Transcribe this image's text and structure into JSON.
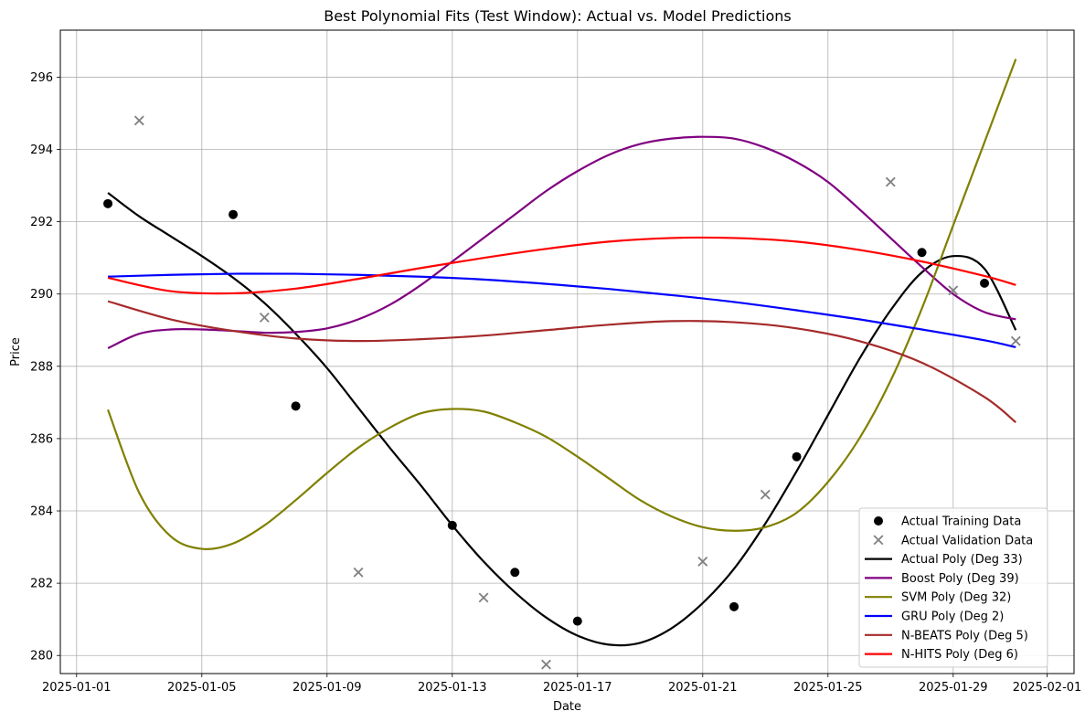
{
  "chart_data": {
    "type": "scatter",
    "title": "Best Polynomial Fits (Test Window): Actual vs. Model Predictions",
    "xlabel": "Date",
    "ylabel": "Price",
    "x_range": [
      "2024-12-31",
      "2025-02-01"
    ],
    "ylim": [
      279.5,
      297.3
    ],
    "grid": true,
    "legend_position": "lower right",
    "x_ticks": [
      "2025-01-01",
      "2025-01-05",
      "2025-01-09",
      "2025-01-13",
      "2025-01-17",
      "2025-01-21",
      "2025-01-25",
      "2025-01-29",
      "2025-02-01"
    ],
    "y_ticks": [
      280,
      282,
      284,
      286,
      288,
      290,
      292,
      294,
      296
    ],
    "scatter_series": [
      {
        "name": "Actual Training Data",
        "marker": "circle",
        "color": "#000000",
        "points": [
          {
            "x": "2025-01-02",
            "y": 292.5
          },
          {
            "x": "2025-01-06",
            "y": 292.2
          },
          {
            "x": "2025-01-08",
            "y": 286.9
          },
          {
            "x": "2025-01-13",
            "y": 283.6
          },
          {
            "x": "2025-01-15",
            "y": 282.3
          },
          {
            "x": "2025-01-17",
            "y": 280.95
          },
          {
            "x": "2025-01-22",
            "y": 281.35
          },
          {
            "x": "2025-01-24",
            "y": 285.5
          },
          {
            "x": "2025-01-28",
            "y": 291.15
          },
          {
            "x": "2025-01-30",
            "y": 290.3
          }
        ]
      },
      {
        "name": "Actual Validation Data",
        "marker": "x",
        "color": "#808080",
        "points": [
          {
            "x": "2025-01-03",
            "y": 294.8
          },
          {
            "x": "2025-01-07",
            "y": 289.35
          },
          {
            "x": "2025-01-10",
            "y": 282.3
          },
          {
            "x": "2025-01-14",
            "y": 281.6
          },
          {
            "x": "2025-01-16",
            "y": 279.75
          },
          {
            "x": "2025-01-21",
            "y": 282.6
          },
          {
            "x": "2025-01-23",
            "y": 284.45
          },
          {
            "x": "2025-01-27",
            "y": 293.1
          },
          {
            "x": "2025-01-29",
            "y": 290.1
          },
          {
            "x": "2025-01-31",
            "y": 288.7
          }
        ]
      }
    ],
    "line_series": [
      {
        "name": "Actual Poly (Deg 33)",
        "color": "#000000",
        "points": [
          {
            "x": "2025-01-02",
            "y": 292.8
          },
          {
            "x": "2025-01-03",
            "y": 292.15
          },
          {
            "x": "2025-01-04",
            "y": 291.6
          },
          {
            "x": "2025-01-05",
            "y": 291.05
          },
          {
            "x": "2025-01-06",
            "y": 290.45
          },
          {
            "x": "2025-01-07",
            "y": 289.75
          },
          {
            "x": "2025-01-08",
            "y": 288.9
          },
          {
            "x": "2025-01-09",
            "y": 287.95
          },
          {
            "x": "2025-01-10",
            "y": 286.85
          },
          {
            "x": "2025-01-11",
            "y": 285.75
          },
          {
            "x": "2025-01-12",
            "y": 284.7
          },
          {
            "x": "2025-01-13",
            "y": 283.6
          },
          {
            "x": "2025-01-14",
            "y": 282.6
          },
          {
            "x": "2025-01-15",
            "y": 281.75
          },
          {
            "x": "2025-01-16",
            "y": 281.05
          },
          {
            "x": "2025-01-17",
            "y": 280.55
          },
          {
            "x": "2025-01-18",
            "y": 280.3
          },
          {
            "x": "2025-01-19",
            "y": 280.35
          },
          {
            "x": "2025-01-20",
            "y": 280.75
          },
          {
            "x": "2025-01-21",
            "y": 281.45
          },
          {
            "x": "2025-01-22",
            "y": 282.4
          },
          {
            "x": "2025-01-23",
            "y": 283.65
          },
          {
            "x": "2025-01-24",
            "y": 285.1
          },
          {
            "x": "2025-01-25",
            "y": 286.65
          },
          {
            "x": "2025-01-26",
            "y": 288.2
          },
          {
            "x": "2025-01-27",
            "y": 289.55
          },
          {
            "x": "2025-01-28",
            "y": 290.6
          },
          {
            "x": "2025-01-29",
            "y": 291.05
          },
          {
            "x": "2025-01-30",
            "y": 290.7
          },
          {
            "x": "2025-01-31",
            "y": 289.0
          }
        ]
      },
      {
        "name": "Boost Poly (Deg 39)",
        "color": "#800080",
        "points": [
          {
            "x": "2025-01-02",
            "y": 288.5
          },
          {
            "x": "2025-01-03",
            "y": 288.9
          },
          {
            "x": "2025-01-04",
            "y": 289.02
          },
          {
            "x": "2025-01-05",
            "y": 289.02
          },
          {
            "x": "2025-01-06",
            "y": 288.98
          },
          {
            "x": "2025-01-07",
            "y": 288.93
          },
          {
            "x": "2025-01-08",
            "y": 288.95
          },
          {
            "x": "2025-01-09",
            "y": 289.05
          },
          {
            "x": "2025-01-10",
            "y": 289.3
          },
          {
            "x": "2025-01-11",
            "y": 289.7
          },
          {
            "x": "2025-01-12",
            "y": 290.25
          },
          {
            "x": "2025-01-13",
            "y": 290.9
          },
          {
            "x": "2025-01-14",
            "y": 291.55
          },
          {
            "x": "2025-01-15",
            "y": 292.2
          },
          {
            "x": "2025-01-16",
            "y": 292.85
          },
          {
            "x": "2025-01-17",
            "y": 293.4
          },
          {
            "x": "2025-01-18",
            "y": 293.85
          },
          {
            "x": "2025-01-19",
            "y": 294.15
          },
          {
            "x": "2025-01-20",
            "y": 294.3
          },
          {
            "x": "2025-01-21",
            "y": 294.35
          },
          {
            "x": "2025-01-22",
            "y": 294.3
          },
          {
            "x": "2025-01-23",
            "y": 294.05
          },
          {
            "x": "2025-01-24",
            "y": 293.65
          },
          {
            "x": "2025-01-25",
            "y": 293.1
          },
          {
            "x": "2025-01-26",
            "y": 292.35
          },
          {
            "x": "2025-01-27",
            "y": 291.55
          },
          {
            "x": "2025-01-28",
            "y": 290.75
          },
          {
            "x": "2025-01-29",
            "y": 290.0
          },
          {
            "x": "2025-01-30",
            "y": 289.5
          },
          {
            "x": "2025-01-31",
            "y": 289.3
          }
        ]
      },
      {
        "name": "SVM Poly (Deg 32)",
        "color": "#808000",
        "points": [
          {
            "x": "2025-01-02",
            "y": 286.8
          },
          {
            "x": "2025-01-03",
            "y": 284.5
          },
          {
            "x": "2025-01-04",
            "y": 283.3
          },
          {
            "x": "2025-01-05",
            "y": 282.95
          },
          {
            "x": "2025-01-06",
            "y": 283.1
          },
          {
            "x": "2025-01-07",
            "y": 283.6
          },
          {
            "x": "2025-01-08",
            "y": 284.3
          },
          {
            "x": "2025-01-09",
            "y": 285.05
          },
          {
            "x": "2025-01-10",
            "y": 285.75
          },
          {
            "x": "2025-01-11",
            "y": 286.3
          },
          {
            "x": "2025-01-12",
            "y": 286.7
          },
          {
            "x": "2025-01-13",
            "y": 286.82
          },
          {
            "x": "2025-01-14",
            "y": 286.75
          },
          {
            "x": "2025-01-15",
            "y": 286.45
          },
          {
            "x": "2025-01-16",
            "y": 286.05
          },
          {
            "x": "2025-01-17",
            "y": 285.5
          },
          {
            "x": "2025-01-18",
            "y": 284.9
          },
          {
            "x": "2025-01-19",
            "y": 284.3
          },
          {
            "x": "2025-01-20",
            "y": 283.85
          },
          {
            "x": "2025-01-21",
            "y": 283.55
          },
          {
            "x": "2025-01-22",
            "y": 283.45
          },
          {
            "x": "2025-01-23",
            "y": 283.55
          },
          {
            "x": "2025-01-24",
            "y": 283.95
          },
          {
            "x": "2025-01-25",
            "y": 284.8
          },
          {
            "x": "2025-01-26",
            "y": 286.0
          },
          {
            "x": "2025-01-27",
            "y": 287.6
          },
          {
            "x": "2025-01-28",
            "y": 289.6
          },
          {
            "x": "2025-01-29",
            "y": 291.9
          },
          {
            "x": "2025-01-30",
            "y": 294.2
          },
          {
            "x": "2025-01-31",
            "y": 296.5
          }
        ]
      },
      {
        "name": "GRU Poly (Deg 2)",
        "color": "#0000ff",
        "points": [
          {
            "x": "2025-01-02",
            "y": 290.48
          },
          {
            "x": "2025-01-04",
            "y": 290.53
          },
          {
            "x": "2025-01-06",
            "y": 290.56
          },
          {
            "x": "2025-01-08",
            "y": 290.56
          },
          {
            "x": "2025-01-10",
            "y": 290.53
          },
          {
            "x": "2025-01-12",
            "y": 290.48
          },
          {
            "x": "2025-01-14",
            "y": 290.4
          },
          {
            "x": "2025-01-16",
            "y": 290.28
          },
          {
            "x": "2025-01-18",
            "y": 290.14
          },
          {
            "x": "2025-01-20",
            "y": 289.97
          },
          {
            "x": "2025-01-22",
            "y": 289.78
          },
          {
            "x": "2025-01-24",
            "y": 289.55
          },
          {
            "x": "2025-01-26",
            "y": 289.3
          },
          {
            "x": "2025-01-28",
            "y": 289.02
          },
          {
            "x": "2025-01-30",
            "y": 288.72
          },
          {
            "x": "2025-01-31",
            "y": 288.53
          }
        ]
      },
      {
        "name": "N-BEATS Poly (Deg 5)",
        "color": "#a52a2a",
        "points": [
          {
            "x": "2025-01-02",
            "y": 289.8
          },
          {
            "x": "2025-01-04",
            "y": 289.3
          },
          {
            "x": "2025-01-06",
            "y": 288.98
          },
          {
            "x": "2025-01-08",
            "y": 288.77
          },
          {
            "x": "2025-01-10",
            "y": 288.7
          },
          {
            "x": "2025-01-12",
            "y": 288.75
          },
          {
            "x": "2025-01-14",
            "y": 288.85
          },
          {
            "x": "2025-01-16",
            "y": 289.0
          },
          {
            "x": "2025-01-18",
            "y": 289.15
          },
          {
            "x": "2025-01-20",
            "y": 289.25
          },
          {
            "x": "2025-01-22",
            "y": 289.22
          },
          {
            "x": "2025-01-24",
            "y": 289.05
          },
          {
            "x": "2025-01-26",
            "y": 288.7
          },
          {
            "x": "2025-01-28",
            "y": 288.1
          },
          {
            "x": "2025-01-30",
            "y": 287.15
          },
          {
            "x": "2025-01-31",
            "y": 286.45
          }
        ]
      },
      {
        "name": "N-HITS Poly (Deg 6)",
        "color": "#ff0000",
        "points": [
          {
            "x": "2025-01-02",
            "y": 290.45
          },
          {
            "x": "2025-01-04",
            "y": 290.08
          },
          {
            "x": "2025-01-06",
            "y": 290.02
          },
          {
            "x": "2025-01-08",
            "y": 290.15
          },
          {
            "x": "2025-01-10",
            "y": 290.42
          },
          {
            "x": "2025-01-12",
            "y": 290.72
          },
          {
            "x": "2025-01-14",
            "y": 291.0
          },
          {
            "x": "2025-01-16",
            "y": 291.25
          },
          {
            "x": "2025-01-18",
            "y": 291.45
          },
          {
            "x": "2025-01-20",
            "y": 291.55
          },
          {
            "x": "2025-01-22",
            "y": 291.55
          },
          {
            "x": "2025-01-24",
            "y": 291.45
          },
          {
            "x": "2025-01-26",
            "y": 291.22
          },
          {
            "x": "2025-01-28",
            "y": 290.9
          },
          {
            "x": "2025-01-30",
            "y": 290.5
          },
          {
            "x": "2025-01-31",
            "y": 290.25
          }
        ]
      }
    ]
  }
}
